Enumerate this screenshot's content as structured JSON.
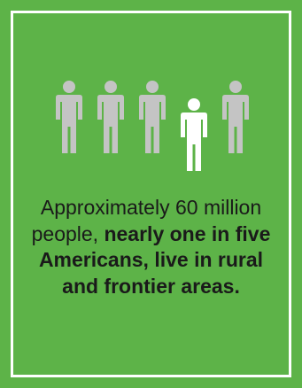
{
  "colors": {
    "background": "#5db348",
    "frame": "#ffffff",
    "person_gray": "#c4c4c4",
    "person_highlight": "#ffffff",
    "text": "#1a1a1a"
  },
  "people": {
    "count": 5,
    "highlighted_index": 3,
    "icon": "person-icon"
  },
  "caption": {
    "part1": "Approximately 60 million people, ",
    "part2_bold": "nearly one in five Americans, live in rural and frontier areas."
  }
}
